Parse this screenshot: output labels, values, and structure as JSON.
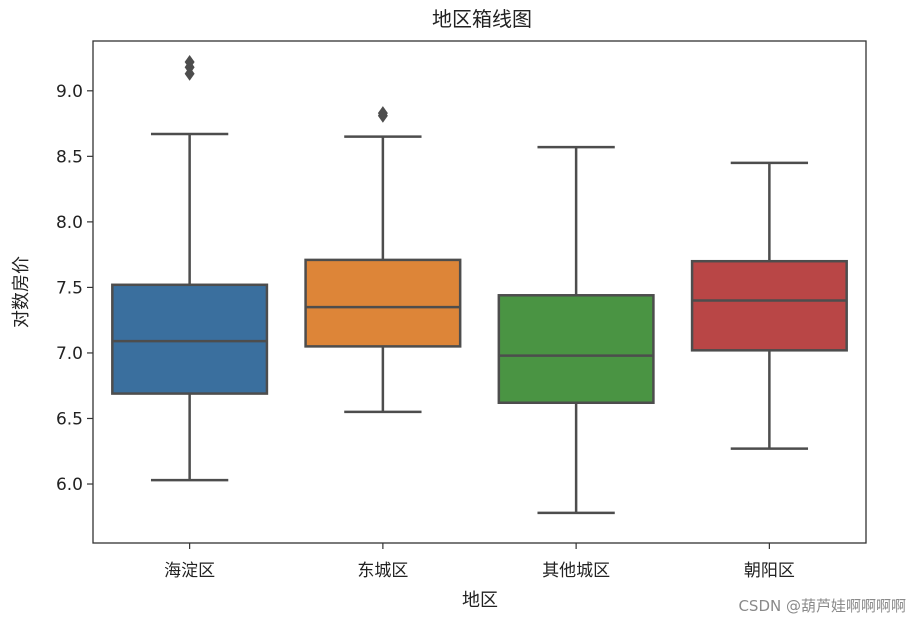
{
  "chart_data": {
    "type": "boxplot",
    "title": "地区箱线图",
    "xlabel": "地区",
    "ylabel": "对数房价",
    "ylim": [
      5.55,
      9.38
    ],
    "yticks": [
      6.0,
      6.5,
      7.0,
      7.5,
      8.0,
      8.5,
      9.0
    ],
    "ytick_labels": [
      "6.0",
      "6.5",
      "7.0",
      "7.5",
      "8.0",
      "8.5",
      "9.0"
    ],
    "categories": [
      "海淀区",
      "东城区",
      "其他城区",
      "朝阳区"
    ],
    "boxes": [
      {
        "category": "海淀区",
        "color": "#3a6f9e",
        "whisker_low": 6.03,
        "q1": 6.69,
        "median": 7.09,
        "q3": 7.52,
        "whisker_high": 8.67,
        "outliers": [
          9.13,
          9.18,
          9.22
        ]
      },
      {
        "category": "东城区",
        "color": "#dd8538",
        "whisker_low": 6.55,
        "q1": 7.05,
        "median": 7.35,
        "q3": 7.71,
        "whisker_high": 8.65,
        "outliers": [
          8.81,
          8.83
        ]
      },
      {
        "category": "其他城区",
        "color": "#4a9443",
        "whisker_low": 5.78,
        "q1": 6.62,
        "median": 6.98,
        "q3": 7.44,
        "whisker_high": 8.57,
        "outliers": []
      },
      {
        "category": "朝阳区",
        "color": "#b94646",
        "whisker_low": 6.27,
        "q1": 7.02,
        "median": 7.4,
        "q3": 7.7,
        "whisker_high": 8.45,
        "outliers": []
      }
    ],
    "grid": false,
    "legend": "none"
  },
  "watermark": "CSDN @葫芦娃啊啊啊啊"
}
